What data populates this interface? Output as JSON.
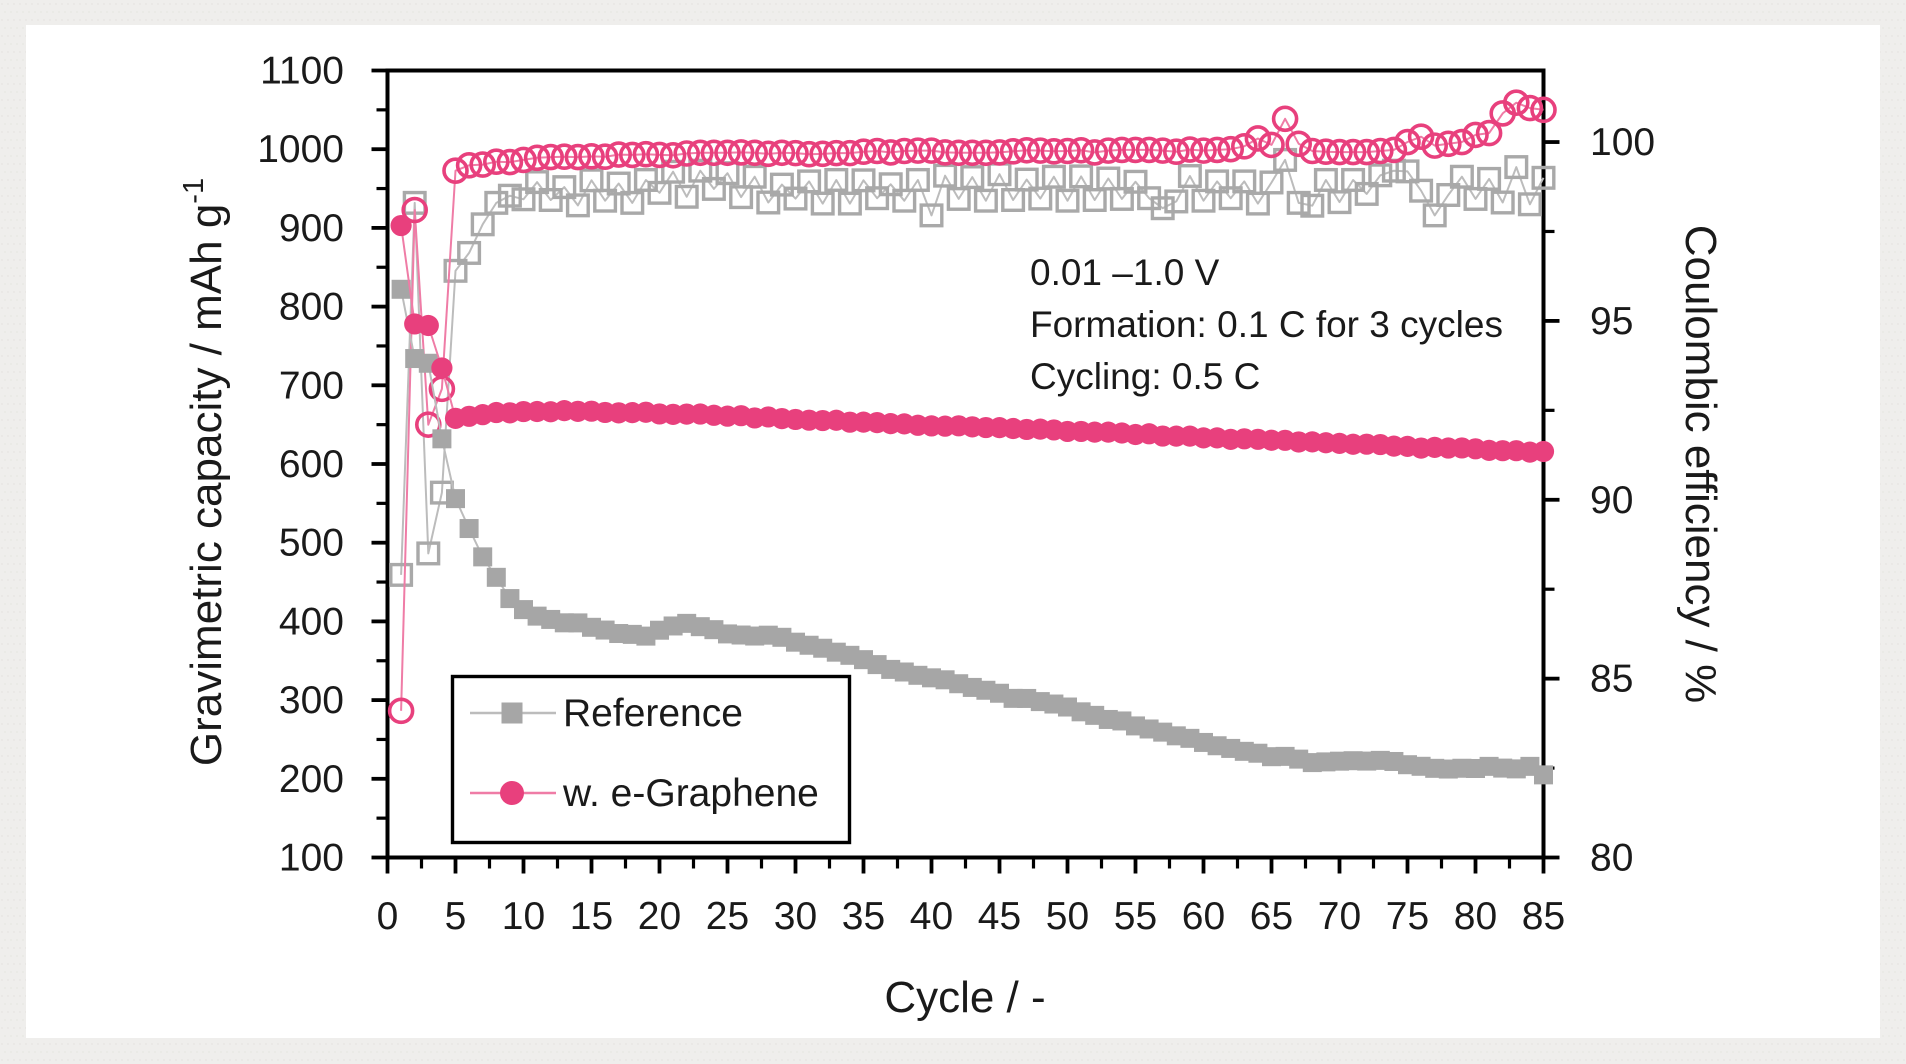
{
  "page": {
    "background_color": "#efeeec",
    "panel_color": "#ffffff",
    "accent_pink": "#e8407d",
    "accent_gray": "#a6a6a6",
    "axis_color": "#000000",
    "text_color": "#1a1a1a"
  },
  "chart_data": {
    "type": "line",
    "title": "",
    "x": {
      "label": "Cycle / -",
      "min": 0,
      "max": 85,
      "major_unit": 5,
      "minor_unit": 2.5,
      "tick_labels": [
        0,
        5,
        10,
        15,
        20,
        25,
        30,
        35,
        40,
        45,
        50,
        55,
        60,
        65,
        70,
        75,
        80,
        85
      ]
    },
    "y_left": {
      "label": "Gravimetric capacity / mAh g⁻¹",
      "min": 100,
      "max": 1100,
      "major_unit": 100,
      "minor_unit": 50,
      "tick_labels": [
        100,
        200,
        300,
        400,
        500,
        600,
        700,
        800,
        900,
        1000,
        1100
      ]
    },
    "y_right": {
      "label": "Coulombic efficiency / %",
      "min": 80,
      "max": 102,
      "major_unit": 5,
      "minor_unit": 2.5,
      "tick_labels": [
        80,
        85,
        90,
        95,
        100
      ]
    },
    "grid": false,
    "legend_position": "lower-left-inside",
    "annotation": {
      "lines": [
        "0.01 –1.0 V",
        "Formation: 0.1 C for 3 cycles",
        "Cycling: 0.5 C"
      ]
    },
    "legend": [
      {
        "label": "Reference",
        "color": "#a6a6a6",
        "marker": "square-filled"
      },
      {
        "label": "w. e-Graphene",
        "color": "#e8407d",
        "marker": "circle-filled"
      }
    ],
    "x_values": [
      1,
      2,
      3,
      4,
      5,
      6,
      7,
      8,
      9,
      10,
      11,
      12,
      13,
      14,
      15,
      16,
      17,
      18,
      19,
      20,
      21,
      22,
      23,
      24,
      25,
      26,
      27,
      28,
      29,
      30,
      31,
      32,
      33,
      34,
      35,
      36,
      37,
      38,
      39,
      40,
      41,
      42,
      43,
      44,
      45,
      46,
      47,
      48,
      49,
      50,
      51,
      52,
      53,
      54,
      55,
      56,
      57,
      58,
      59,
      60,
      61,
      62,
      63,
      64,
      65,
      66,
      67,
      68,
      69,
      70,
      71,
      72,
      73,
      74,
      75,
      76,
      77,
      78,
      79,
      80,
      81,
      82,
      83,
      84,
      85
    ],
    "series": [
      {
        "name": "Reference capacity",
        "axis": "left",
        "marker": "square-filled",
        "color": "#a6a6a6",
        "line_color": "#bcbcbc",
        "values": [
          822,
          734.0,
          728.0,
          632.0,
          556.0,
          518.0,
          482.0,
          456.0,
          429.0,
          415.0,
          406.7,
          402.5,
          398.2,
          398.1,
          392.5,
          389.0,
          384.6,
          383.5,
          381.3,
          388.8,
          394.2,
          397.5,
          393.3,
          389.5,
          384.1,
          382.7,
          381.4,
          382.5,
          379.8,
          373.6,
          369.7,
          365.9,
          360.9,
          356.9,
          351.4,
          345.1,
          339.0,
          335.7,
          331.5,
          328.3,
          325.8,
          320.8,
          316.1,
          312.5,
          308.7,
          302.2,
          302.1,
          298.1,
          295.0,
          291.2,
          285.1,
          280.6,
          275.4,
          273.5,
          267.2,
          263.3,
          259.3,
          254.6,
          251.4,
          246.2,
          242.0,
          238.6,
          234.9,
          232.5,
          228.1,
          228.5,
          225.0,
          220.6,
          221.5,
          222.4,
          223.0,
          222.5,
          223.4,
          222.0,
          217.9,
          215.9,
          213.3,
          212.4,
          213.4,
          213.1,
          215.8,
          213.6,
          212.6,
          215.8,
          205
        ]
      },
      {
        "name": "w. e-Graphene capacity",
        "axis": "left",
        "marker": "circle-filled",
        "color": "#e8407d",
        "line_color": "#ef7ca6",
        "values": [
          903,
          778.0,
          776.0,
          722.0,
          658.0,
          660.6,
          662.7,
          665.4,
          665.0,
          666.6,
          666.7,
          666.4,
          667.8,
          666.9,
          667.1,
          665.5,
          665.0,
          665.3,
          665.8,
          663.6,
          663.1,
          663.4,
          663.5,
          661.9,
          660.8,
          661.4,
          658.5,
          659.8,
          657.7,
          656.6,
          655.7,
          655.2,
          655.6,
          653.1,
          653.2,
          652.6,
          651.3,
          651.0,
          649.2,
          648.4,
          648.1,
          648.5,
          647.2,
          646.3,
          646.2,
          645.1,
          643.9,
          644.3,
          643.3,
          641.4,
          641.4,
          640.5,
          640.5,
          639.4,
          637.5,
          638.4,
          635.5,
          635.4,
          635.4,
          633.2,
          633.2,
          631.3,
          632.0,
          631.4,
          630.2,
          630.1,
          628.0,
          628.1,
          627.0,
          626.2,
          625.1,
          625.2,
          624.7,
          622.7,
          622.4,
          620.2,
          621.1,
          620.3,
          620.4,
          619.3,
          617.3,
          616.9,
          616.9,
          615.1,
          615.9
        ]
      },
      {
        "name": "Reference coulombic efficiency",
        "axis": "right",
        "marker": "square-open",
        "color": "#a9a9a9",
        "line_color": "#bcbcbc",
        "values": [
          87.9,
          98.3,
          88.5,
          90.2,
          96.4,
          96.9,
          97.7,
          98.3,
          98.5,
          98.4,
          98.88,
          98.38,
          98.74,
          98.23,
          98.93,
          98.36,
          98.84,
          98.3,
          98.94,
          98.58,
          99.17,
          98.47,
          99.2,
          98.69,
          99.13,
          98.46,
          99.03,
          98.31,
          98.81,
          98.42,
          98.9,
          98.28,
          98.94,
          98.28,
          98.93,
          98.43,
          98.82,
          98.36,
          98.94,
          97.95,
          99.06,
          98.41,
          99.02,
          98.36,
          99.1,
          98.38,
          98.95,
          98.42,
          99.03,
          98.36,
          99.04,
          98.38,
          98.98,
          98.41,
          98.89,
          98.43,
          98.15,
          98.34,
          99.05,
          98.36,
          98.9,
          98.43,
          98.9,
          98.28,
          98.87,
          99.5,
          98.3,
          98.22,
          98.94,
          98.32,
          98.94,
          98.55,
          99.07,
          99.2,
          99.18,
          98.64,
          97.95,
          98.52,
          99.03,
          98.41,
          98.97,
          98.31,
          99.3,
          98.26,
          99.0
        ]
      },
      {
        "name": "w. e-Graphene coulombic efficiency",
        "axis": "right",
        "marker": "circle-open",
        "color": "#e8407d",
        "line_color": "#ef7ca6",
        "values": [
          84.1,
          98.1,
          92.1,
          93.1,
          99.2,
          99.35,
          99.37,
          99.45,
          99.44,
          99.5,
          99.56,
          99.58,
          99.59,
          99.58,
          99.6,
          99.59,
          99.65,
          99.64,
          99.66,
          99.64,
          99.63,
          99.68,
          99.7,
          99.7,
          99.7,
          99.71,
          99.7,
          99.67,
          99.7,
          99.69,
          99.66,
          99.67,
          99.69,
          99.69,
          99.73,
          99.75,
          99.71,
          99.75,
          99.76,
          99.76,
          99.71,
          99.7,
          99.7,
          99.7,
          99.71,
          99.74,
          99.77,
          99.76,
          99.74,
          99.75,
          99.77,
          99.71,
          99.76,
          99.78,
          99.78,
          99.78,
          99.76,
          99.73,
          99.79,
          99.76,
          99.78,
          99.8,
          99.88,
          100.1,
          99.92,
          100.65,
          99.95,
          99.75,
          99.73,
          99.72,
          99.72,
          99.72,
          99.75,
          99.78,
          100.0,
          100.15,
          99.9,
          99.95,
          100.0,
          100.2,
          100.25,
          100.8,
          101.1,
          100.95,
          100.9
        ]
      }
    ]
  }
}
